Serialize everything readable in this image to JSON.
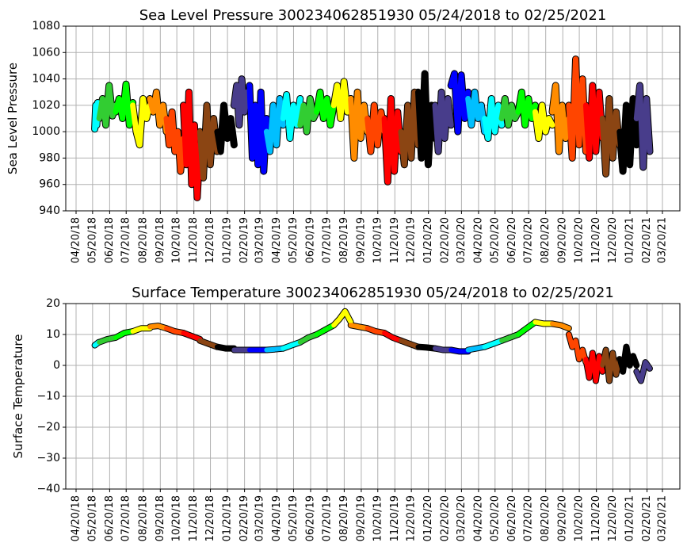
{
  "chart_data": [
    {
      "type": "line",
      "title": "Sea Level Pressure 300234062851930  05/24/2018 to 02/25/2021",
      "ylabel": "Sea Level Pressure",
      "xlabel": "",
      "ylim": [
        940,
        1080
      ],
      "yticks": [
        940,
        960,
        980,
        1000,
        1020,
        1040,
        1060,
        1080
      ],
      "grid": true,
      "key": "p"
    },
    {
      "type": "line",
      "title": "Surface Temperature 300234062851930  05/24/2018 to 02/25/2021",
      "ylabel": "Surface Temperature",
      "xlabel": "",
      "ylim": [
        -40,
        20
      ],
      "yticks": [
        -40,
        -30,
        -20,
        -10,
        0,
        10,
        20
      ],
      "grid": true,
      "key": "t"
    }
  ],
  "xticks": [
    "04/20/18",
    "05/20/18",
    "06/20/18",
    "07/20/18",
    "08/20/18",
    "09/20/18",
    "10/20/18",
    "11/20/18",
    "12/20/18",
    "01/20/19",
    "02/20/19",
    "03/20/19",
    "04/20/19",
    "05/20/19",
    "06/20/19",
    "07/20/19",
    "08/20/19",
    "09/20/19",
    "10/20/19",
    "11/20/19",
    "12/20/19",
    "01/20/20",
    "02/20/20",
    "03/20/20",
    "04/20/20",
    "05/20/20",
    "06/20/20",
    "07/20/20",
    "08/20/20",
    "09/20/20",
    "10/20/20",
    "11/20/20",
    "12/20/20",
    "01/20/21",
    "02/20/21",
    "03/20/21"
  ],
  "month_colors": {
    "1": "#000000",
    "2": "#483D8B",
    "3": "#0000FF",
    "4": "#00BFFF",
    "5": "#00FFFF",
    "6": "#32CD32",
    "7": "#00FF00",
    "8": "#FFFF00",
    "9": "#FF8C00",
    "10": "#FF4500",
    "11": "#FF0000",
    "12": "#8B4513"
  },
  "segments": [
    {
      "month": "2018-05",
      "start_day": 24,
      "end_day": 31,
      "p": [
        1002,
        1020,
        1005,
        1022,
        1010
      ],
      "t": [
        6.5,
        7,
        7.5
      ]
    },
    {
      "month": "2018-06",
      "p": [
        1010,
        1025,
        1005,
        1035,
        1012,
        1020
      ],
      "t": [
        7.5,
        8.5,
        9
      ]
    },
    {
      "month": "2018-07",
      "p": [
        1015,
        1025,
        1010,
        1036,
        1005,
        1022
      ],
      "t": [
        9,
        10.5,
        11
      ]
    },
    {
      "month": "2018-08",
      "p": [
        1020,
        1000,
        990,
        1025,
        1010,
        1020
      ],
      "t": [
        11,
        12,
        12
      ]
    },
    {
      "month": "2018-09",
      "p": [
        1025,
        1015,
        1030,
        1005,
        1020,
        1000
      ],
      "t": [
        12.5,
        12.8,
        12
      ]
    },
    {
      "month": "2018-10",
      "p": [
        1010,
        990,
        1015,
        985,
        1000,
        970,
        995
      ],
      "t": [
        12,
        11,
        10.5
      ]
    },
    {
      "month": "2018-11",
      "p": [
        1020,
        975,
        1030,
        960,
        1005,
        950,
        990
      ],
      "t": [
        10.5,
        9.5,
        8.5
      ]
    },
    {
      "month": "2018-12",
      "p": [
        1000,
        965,
        1020,
        975,
        1010,
        985
      ],
      "t": [
        8,
        7,
        6
      ]
    },
    {
      "month": "2019-01",
      "p": [
        1000,
        985,
        1020,
        995,
        1010,
        990
      ],
      "t": [
        6,
        5.5,
        5.5
      ]
    },
    {
      "month": "2019-02",
      "p": [
        1020,
        1035,
        1005,
        1040,
        1015,
        1030,
        1025
      ],
      "t": [
        5,
        5,
        5
      ]
    },
    {
      "month": "2019-03",
      "p": [
        1035,
        980,
        1020,
        975,
        1030,
        970,
        1010
      ],
      "t": [
        5,
        5,
        5
      ]
    },
    {
      "month": "2019-04",
      "p": [
        1000,
        985,
        1020,
        990,
        1025,
        1005
      ],
      "t": [
        5,
        5.2,
        5.5
      ]
    },
    {
      "month": "2019-05",
      "p": [
        1010,
        1028,
        995,
        1020,
        1005,
        1025
      ],
      "t": [
        5.5,
        6.5,
        7.5
      ]
    },
    {
      "month": "2019-06",
      "p": [
        1005,
        1020,
        1000,
        1025,
        1010,
        1015
      ],
      "t": [
        7.5,
        9,
        10
      ]
    },
    {
      "month": "2019-07",
      "p": [
        1015,
        1030,
        1010,
        1025,
        1005,
        1020
      ],
      "t": [
        10,
        11.5,
        13
      ]
    },
    {
      "month": "2019-08",
      "p": [
        1020,
        1035,
        1010,
        1038,
        1015,
        1025
      ],
      "t": [
        13,
        15,
        17.5,
        14
      ]
    },
    {
      "month": "2019-09",
      "p": [
        1025,
        980,
        1030,
        995,
        1020,
        1000
      ],
      "t": [
        13,
        12.5,
        12
      ]
    },
    {
      "month": "2019-10",
      "p": [
        1010,
        985,
        1020,
        990,
        1015,
        1000
      ],
      "t": [
        12,
        11,
        10.5
      ]
    },
    {
      "month": "2019-11",
      "p": [
        1010,
        962,
        1025,
        970,
        1015,
        985
      ],
      "t": [
        10.5,
        9,
        8
      ]
    },
    {
      "month": "2019-12",
      "p": [
        1000,
        975,
        1020,
        980,
        1030,
        990
      ],
      "t": [
        8,
        7,
        6
      ]
    },
    {
      "month": "2020-01",
      "p": [
        1030,
        980,
        1044,
        975,
        1020,
        995
      ],
      "t": [
        6,
        5.8,
        5.5
      ]
    },
    {
      "month": "2020-02",
      "p": [
        1020,
        985,
        1030,
        995,
        1025,
        1005
      ],
      "t": [
        5.5,
        5,
        5
      ]
    },
    {
      "month": "2020-03",
      "p": [
        1035,
        1044,
        1000,
        1043,
        1010,
        1030
      ],
      "t": [
        5,
        4.5,
        4.5
      ]
    },
    {
      "month": "2020-04",
      "p": [
        1025,
        1005,
        1030,
        1010,
        1020,
        1000
      ],
      "t": [
        5,
        5.5,
        6
      ]
    },
    {
      "month": "2020-05",
      "p": [
        1010,
        995,
        1025,
        1000,
        1020,
        1005
      ],
      "t": [
        6,
        7,
        8
      ]
    },
    {
      "month": "2020-06",
      "p": [
        1010,
        1025,
        1005,
        1020,
        1010,
        1015
      ],
      "t": [
        8,
        9,
        10
      ]
    },
    {
      "month": "2020-07",
      "p": [
        1015,
        1030,
        1005,
        1025,
        1010,
        1020
      ],
      "t": [
        10,
        12,
        14
      ]
    },
    {
      "month": "2020-08",
      "p": [
        1015,
        995,
        1020,
        1000,
        1010,
        1005
      ],
      "t": [
        14,
        13.5,
        13.5
      ]
    },
    {
      "month": "2020-09",
      "p": [
        1015,
        1035,
        985,
        1020,
        995,
        1010
      ],
      "t": [
        13.5,
        13,
        12
      ]
    },
    {
      "month": "2020-10",
      "p": [
        1020,
        980,
        1055,
        990,
        1040,
        985
      ],
      "t": [
        10,
        6,
        8,
        2,
        5,
        1
      ]
    },
    {
      "month": "2020-11",
      "p": [
        1020,
        980,
        1035,
        985,
        1030,
        995
      ],
      "t": [
        2,
        -4,
        4,
        -5,
        3,
        -2
      ]
    },
    {
      "month": "2020-12",
      "p": [
        1010,
        968,
        1025,
        980,
        1015,
        990
      ],
      "t": [
        0,
        5,
        -5,
        4,
        -3,
        2
      ]
    },
    {
      "month": "2021-01",
      "p": [
        1000,
        970,
        1020,
        975,
        1025,
        990
      ],
      "t": [
        2,
        -2,
        6,
        0,
        3,
        0
      ]
    },
    {
      "month": "2021-02",
      "start_day": 1,
      "end_day": 25,
      "p": [
        1010,
        1035,
        973,
        1025,
        985
      ],
      "t": [
        -2,
        -5,
        1,
        -1
      ]
    }
  ]
}
